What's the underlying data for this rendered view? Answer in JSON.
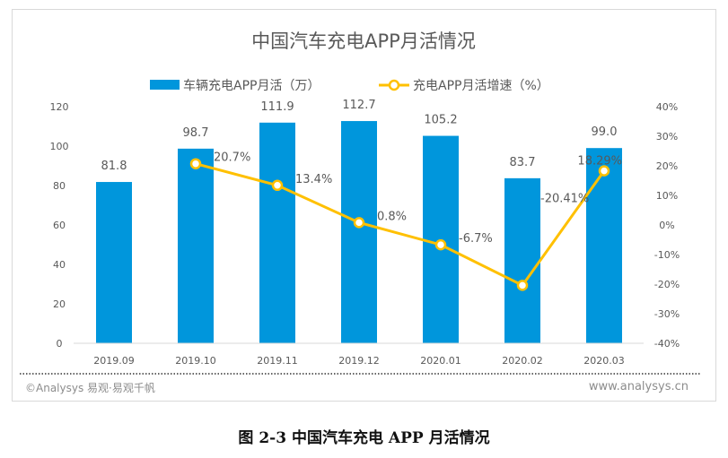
{
  "chart_data": {
    "type": "bar+line",
    "title": "中国汽车充电APP月活情况",
    "categories": [
      "2019.09",
      "2019.10",
      "2019.11",
      "2019.12",
      "2020.01",
      "2020.02",
      "2020.03"
    ],
    "series": [
      {
        "name": "车辆充电APP月活（万）",
        "type": "bar",
        "axis": "left",
        "values": [
          81.8,
          98.7,
          111.9,
          112.7,
          105.2,
          83.7,
          99.0
        ],
        "labels": [
          "81.8",
          "98.7",
          "111.9",
          "112.7",
          "105.2",
          "83.7",
          "99.0"
        ],
        "color": "#0096DC"
      },
      {
        "name": "充电APP月活增速（%）",
        "type": "line",
        "axis": "right",
        "values": [
          null,
          20.7,
          13.4,
          0.8,
          -6.7,
          -20.41,
          18.29
        ],
        "labels": [
          "",
          "20.7%",
          "13.4%",
          "0.8%",
          "-6.7%",
          "-20.41%",
          "18.29%"
        ],
        "color": "#FFC000"
      }
    ],
    "left_axis": {
      "ylim": [
        0,
        120
      ],
      "ticks": [
        "0",
        "20",
        "40",
        "60",
        "80",
        "100",
        "120"
      ]
    },
    "right_axis": {
      "ylim": [
        -40,
        40
      ],
      "ticks": [
        "-40%",
        "-30%",
        "-20%",
        "-10%",
        "0%",
        "10%",
        "20%",
        "30%",
        "40%"
      ]
    },
    "legend_placement": "top-center",
    "grid": false
  },
  "footer": {
    "source": "©Analysys 易观·易观千帆",
    "url": "www.analysys.cn"
  },
  "caption": "图 2-3 中国汽车充电 APP 月活情况"
}
